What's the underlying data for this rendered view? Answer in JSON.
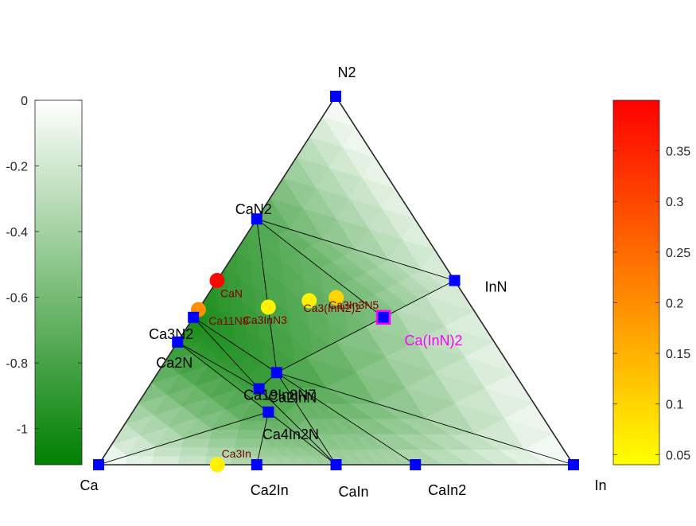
{
  "colors": {
    "node": "#0000ff",
    "edge": "#000000",
    "frame": "#262626",
    "label": "#000000",
    "unstable_label": "#800000",
    "highlight": "#ff00ff",
    "energy_dark": "#008000",
    "energy_light": "#ffffff"
  },
  "left_colorbar": {
    "ticks": [
      {
        "value": 0,
        "label": "0"
      },
      {
        "value": -0.2,
        "label": "-0.2"
      },
      {
        "value": -0.4,
        "label": "-0.4"
      },
      {
        "value": -0.6,
        "label": "-0.6"
      },
      {
        "value": -0.8,
        "label": "-0.8"
      },
      {
        "value": -1,
        "label": "-1"
      }
    ],
    "range": [
      -1.11,
      0
    ]
  },
  "right_colorbar": {
    "ticks": [
      {
        "value": 0.35,
        "label": "0.35"
      },
      {
        "value": 0.3,
        "label": "0.3"
      },
      {
        "value": 0.25,
        "label": "0.25"
      },
      {
        "value": 0.2,
        "label": "0.2"
      },
      {
        "value": 0.15,
        "label": "0.15"
      },
      {
        "value": 0.1,
        "label": "0.1"
      },
      {
        "value": 0.05,
        "label": "0.05"
      }
    ],
    "range": [
      0.04,
      0.4
    ],
    "colormap": [
      "#ffff00",
      "#ff0000"
    ]
  },
  "stable_phases": [
    {
      "name": "Ca",
      "label": "Ca",
      "ca": 1,
      "in": 0,
      "n": 0,
      "energy": 0
    },
    {
      "name": "In",
      "label": "In",
      "ca": 0,
      "in": 1,
      "n": 0,
      "energy": 0
    },
    {
      "name": "N2",
      "label": "N2",
      "ca": 0,
      "in": 0,
      "n": 1,
      "energy": 0
    },
    {
      "name": "CaN2",
      "label": "CaN2",
      "ca": 0.333,
      "in": 0,
      "n": 0.667,
      "energy": -0.75
    },
    {
      "name": "Ca3N2",
      "label": "Ca3N2",
      "ca": 0.6,
      "in": 0,
      "n": 0.4,
      "energy": -1.0
    },
    {
      "name": "Ca2N",
      "label": "Ca2N",
      "ca": 0.667,
      "in": 0,
      "n": 0.333,
      "energy": -0.9
    },
    {
      "name": "InN",
      "label": "InN",
      "ca": 0,
      "in": 0.5,
      "n": 0.5,
      "energy": -0.15
    },
    {
      "name": "Ca2In",
      "label": "Ca2In",
      "ca": 0.667,
      "in": 0.333,
      "n": 0,
      "energy": -0.35
    },
    {
      "name": "CaIn",
      "label": "CaIn",
      "ca": 0.5,
      "in": 0.5,
      "n": 0,
      "energy": -0.4
    },
    {
      "name": "CaIn2",
      "label": "CaIn2",
      "ca": 0.333,
      "in": 0.667,
      "n": 0,
      "energy": -0.35
    },
    {
      "name": "Ca2InN",
      "label": "Ca2InN",
      "ca": 0.5,
      "in": 0.25,
      "n": 0.25,
      "energy": -0.85
    },
    {
      "name": "Ca19In8N7",
      "label": "Ca19In8N7",
      "ca": 0.559,
      "in": 0.235,
      "n": 0.206,
      "energy": -0.85
    },
    {
      "name": "Ca4In2N",
      "label": "Ca4In2N",
      "ca": 0.571,
      "in": 0.286,
      "n": 0.143,
      "energy": -0.75
    }
  ],
  "unstable_phases": [
    {
      "name": "CaN",
      "label": "CaN",
      "ca": 0.5,
      "in": 0,
      "n": 0.5,
      "e_above_hull": 0.39
    },
    {
      "name": "Ca11N8",
      "label": "Ca11N8",
      "ca": 0.579,
      "in": 0,
      "n": 0.421,
      "e_above_hull": 0.2
    },
    {
      "name": "Ca3InN3",
      "label": "Ca3InN3",
      "ca": 0.429,
      "in": 0.143,
      "n": 0.429,
      "e_above_hull": 0.06
    },
    {
      "name": "Ca3(InN2)2",
      "label": "Ca3(InN2)2",
      "ca": 0.333,
      "in": 0.222,
      "n": 0.444,
      "e_above_hull": 0.06
    },
    {
      "name": "Ca3In3N5",
      "label": "Ca3In3N5",
      "ca": 0.273,
      "in": 0.273,
      "n": 0.455,
      "e_above_hull": 0.1
    },
    {
      "name": "Ca3In",
      "label": "Ca3In",
      "ca": 0.75,
      "in": 0.25,
      "n": 0,
      "e_above_hull": 0.06
    }
  ],
  "highlighted_phase": {
    "name": "Ca(InN)2",
    "label": "Ca(InN)2",
    "ca": 0.2,
    "in": 0.4,
    "n": 0.4
  },
  "tie_lines": [
    [
      "CaN2",
      "InN"
    ],
    [
      "CaN2",
      "Ca(InN)2"
    ],
    [
      "CaN2",
      "Ca2InN"
    ],
    [
      "CaN2",
      "Ca3N2"
    ],
    [
      "Ca3N2",
      "Ca2InN"
    ],
    [
      "Ca3N2",
      "Ca19In8N7"
    ],
    [
      "Ca2N",
      "Ca19In8N7"
    ],
    [
      "Ca2N",
      "Ca4In2N"
    ],
    [
      "Ca",
      "Ca4In2N"
    ],
    [
      "Ca4In2N",
      "Ca2In"
    ],
    [
      "Ca4In2N",
      "CaIn"
    ],
    [
      "Ca19In8N7",
      "Ca2InN"
    ],
    [
      "Ca19In8N7",
      "CaIn"
    ],
    [
      "Ca2InN",
      "CaIn"
    ],
    [
      "Ca2InN",
      "CaIn2"
    ],
    [
      "Ca2InN",
      "InN"
    ],
    [
      "Ca2InN",
      "In"
    ],
    [
      "CaIn2",
      "In"
    ]
  ]
}
